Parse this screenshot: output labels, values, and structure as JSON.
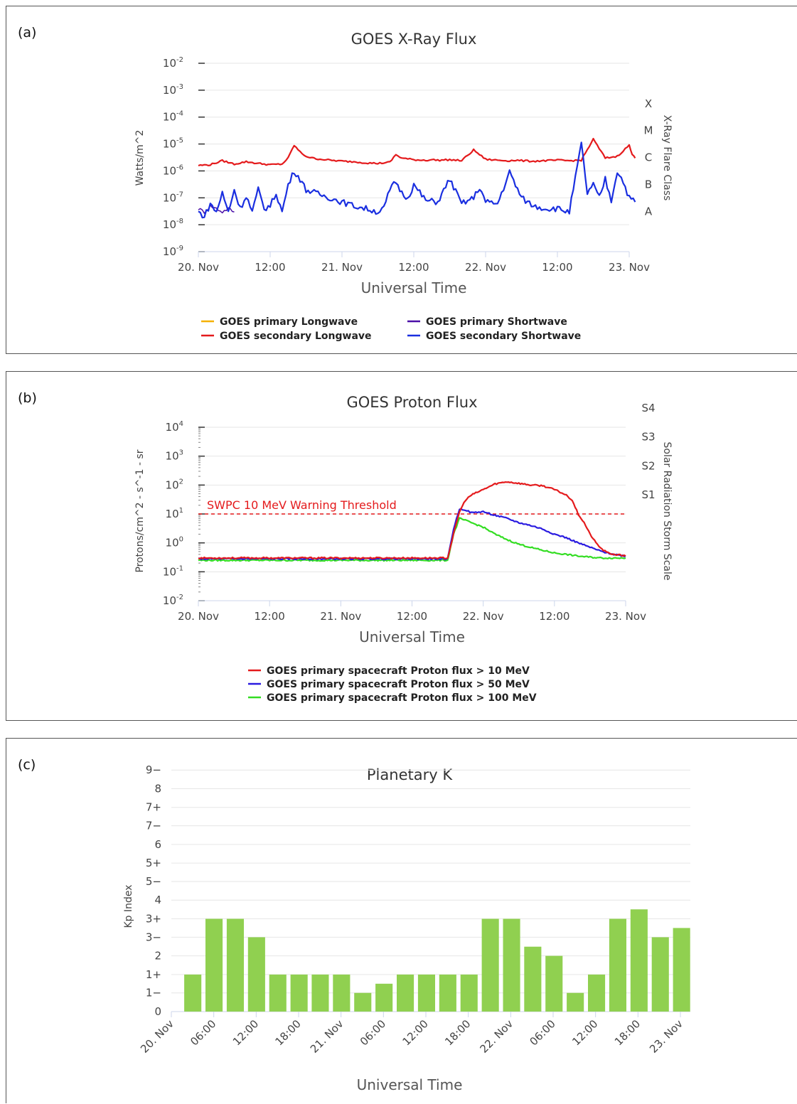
{
  "panel_labels": [
    "(a)",
    "(b)",
    "(c)"
  ],
  "chart_data": [
    {
      "type": "line",
      "title": "GOES X-Ray Flux",
      "xlabel": "Universal Time",
      "ylabel": "Watts/m^2",
      "y2label": "X-Ray Flare Class",
      "y_scale": "log",
      "ylim": [
        1e-09,
        0.01
      ],
      "xlim": [
        "2023-11-20T00:00",
        "2023-11-23T00:00"
      ],
      "x_ticks": [
        "20. Nov",
        "12:00",
        "21. Nov",
        "12:00",
        "22. Nov",
        "12:00",
        "23. Nov"
      ],
      "y_ticks": [
        "10",
        "10",
        "10",
        "10",
        "10",
        "10",
        "10",
        "10"
      ],
      "y_tick_exponents": [
        "-2",
        "-3",
        "-4",
        "-5",
        "-6",
        "-7",
        "-8",
        "-9"
      ],
      "flare_classes": [
        "X",
        "M",
        "C",
        "B",
        "A"
      ],
      "grid": true,
      "legend_position": "bottom",
      "series": [
        {
          "name": "GOES primary Longwave",
          "color": "#f5b000",
          "x": [],
          "y": []
        },
        {
          "name": "GOES primary Shortwave",
          "color": "#4b0fa8",
          "x": [
            0,
            1,
            2,
            3,
            4,
            5,
            6
          ],
          "y": [
            4e-08,
            3e-08,
            5e-08,
            4e-08,
            3e-08,
            4e-08,
            3e-08
          ]
        },
        {
          "name": "GOES secondary Longwave",
          "color": "#e41a1c",
          "x": [
            0,
            2,
            4,
            6,
            8,
            10,
            12,
            14,
            15,
            16,
            17,
            18,
            19,
            20,
            22,
            24,
            26,
            28,
            30,
            32,
            33,
            34,
            35,
            36,
            38,
            39,
            40,
            42,
            44,
            46,
            48,
            50,
            52,
            53,
            54,
            56,
            58,
            60,
            62,
            64,
            66,
            68,
            70,
            72,
            72.5,
            73
          ],
          "y": [
            1.6e-06,
            1.7e-06,
            2.4e-06,
            1.8e-06,
            2.2e-06,
            1.9e-06,
            1.7e-06,
            1.8e-06,
            3e-06,
            9e-06,
            5e-06,
            3.5e-06,
            3e-06,
            2.8e-06,
            2.5e-06,
            2.3e-06,
            2.2e-06,
            2e-06,
            1.9e-06,
            2.1e-06,
            4e-06,
            3e-06,
            2.8e-06,
            2.6e-06,
            2.5e-06,
            2.6e-06,
            2.5e-06,
            2.6e-06,
            2.4e-06,
            6e-06,
            2.7e-06,
            2.5e-06,
            2.4e-06,
            2.5e-06,
            2.4e-06,
            2.3e-06,
            2.4e-06,
            2.5e-06,
            2.4e-06,
            2.5e-06,
            1.5e-05,
            3e-06,
            3.5e-06,
            9e-06,
            4e-06,
            3e-06
          ]
        },
        {
          "name": "GOES secondary Shortwave",
          "color": "#1a2fe0",
          "x": [
            0,
            1,
            2,
            3,
            4,
            5,
            6,
            7,
            8,
            9,
            10,
            11,
            12,
            13,
            14,
            15,
            16,
            17,
            18,
            20,
            22,
            24,
            26,
            28,
            30,
            31,
            32,
            33,
            34,
            35,
            36,
            38,
            40,
            42,
            44,
            46,
            47,
            48,
            50,
            52,
            54,
            56,
            58,
            60,
            62,
            64,
            65,
            66,
            67,
            68,
            69,
            70,
            71,
            72,
            73
          ],
          "y": [
            3e-08,
            2e-08,
            6e-08,
            3e-08,
            1.5e-07,
            3e-08,
            2e-07,
            4e-08,
            1.2e-07,
            3e-08,
            2e-07,
            4e-08,
            5e-08,
            1.5e-07,
            3e-08,
            3e-07,
            1e-06,
            5e-07,
            2e-07,
            1.4e-07,
            1e-07,
            7e-08,
            5e-08,
            4e-08,
            3e-08,
            4e-08,
            2e-07,
            4e-07,
            1.5e-07,
            1e-07,
            3e-07,
            8e-08,
            7e-08,
            5e-07,
            6e-08,
            1e-07,
            2.5e-07,
            7e-08,
            6e-08,
            9e-07,
            1e-07,
            5e-08,
            4e-08,
            4e-08,
            3e-08,
            1e-05,
            1.5e-07,
            3e-07,
            1e-07,
            5e-07,
            8e-08,
            1e-06,
            4e-07,
            1e-07,
            7e-08
          ]
        }
      ]
    },
    {
      "type": "line",
      "title": "GOES Proton Flux",
      "xlabel": "Universal Time",
      "ylabel": "Protons/cm^2 - s^-1 - sr",
      "y2label": "Solar Radiation Storm Scale",
      "y_scale": "log",
      "ylim": [
        0.01,
        10000
      ],
      "xlim": [
        "2023-11-20T00:00",
        "2023-11-23T00:00"
      ],
      "x_ticks": [
        "20. Nov",
        "12:00",
        "21. Nov",
        "12:00",
        "22. Nov",
        "12:00",
        "23. Nov"
      ],
      "y_ticks": [
        "10",
        "10",
        "10",
        "10",
        "10",
        "10",
        "10"
      ],
      "y_tick_exponents": [
        "4",
        "3",
        "2",
        "1",
        "0",
        "-1",
        "-2"
      ],
      "storm_scale": [
        "S4",
        "S3",
        "S2",
        "S1"
      ],
      "threshold": {
        "label": "SWPC 10 MeV Warning Threshold",
        "value": 10,
        "color": "#e41a1c"
      },
      "grid": true,
      "legend_position": "bottom",
      "series": [
        {
          "name": "GOES primary spacecraft Proton flux > 10 MeV",
          "color": "#e41a1c",
          "x": [
            0,
            10,
            20,
            30,
            40,
            42,
            43,
            44,
            45,
            46,
            48,
            50,
            52,
            54,
            56,
            58,
            60,
            62,
            63,
            64,
            65,
            66,
            67,
            68,
            69,
            70,
            71,
            72
          ],
          "y": [
            0.3,
            0.3,
            0.3,
            0.3,
            0.3,
            0.3,
            2,
            12,
            30,
            45,
            70,
            110,
            130,
            115,
            100,
            95,
            70,
            45,
            30,
            10,
            5,
            2,
            1,
            0.6,
            0.45,
            0.4,
            0.38,
            0.35
          ]
        },
        {
          "name": "GOES primary spacecraft Proton flux > 50 MeV",
          "color": "#2a1be0",
          "x": [
            0,
            10,
            20,
            30,
            40,
            42,
            43,
            44,
            45,
            46,
            48,
            50,
            52,
            54,
            56,
            58,
            60,
            62,
            64,
            66,
            68,
            70,
            72
          ],
          "y": [
            0.28,
            0.28,
            0.28,
            0.28,
            0.28,
            0.28,
            3,
            15,
            14,
            11,
            12,
            9,
            7,
            5,
            4,
            3,
            2,
            1.5,
            1,
            0.7,
            0.5,
            0.4,
            0.35
          ]
        },
        {
          "name": "GOES primary spacecraft Proton flux > 100 MeV",
          "color": "#33dd22",
          "x": [
            0,
            10,
            20,
            30,
            40,
            42,
            43,
            44,
            45,
            46,
            48,
            50,
            52,
            54,
            56,
            58,
            60,
            62,
            64,
            66,
            68,
            70,
            72
          ],
          "y": [
            0.25,
            0.25,
            0.25,
            0.25,
            0.25,
            0.25,
            2,
            7,
            6,
            5,
            3.5,
            2,
            1.3,
            0.9,
            0.7,
            0.55,
            0.45,
            0.4,
            0.35,
            0.32,
            0.3,
            0.3,
            0.3
          ]
        }
      ]
    },
    {
      "type": "bar",
      "title": "Planetary K",
      "xlabel": "Universal Time",
      "ylabel": "Kp Index",
      "ylim": [
        0,
        9.67
      ],
      "y_ticks": [
        {
          "label": "9−",
          "v": 8.67
        },
        {
          "label": "8",
          "v": 8
        },
        {
          "label": "7+",
          "v": 7.33
        },
        {
          "label": "7−",
          "v": 6.67
        },
        {
          "label": "6",
          "v": 6
        },
        {
          "label": "5+",
          "v": 5.33
        },
        {
          "label": "5−",
          "v": 4.67
        },
        {
          "label": "4",
          "v": 4
        },
        {
          "label": "3+",
          "v": 3.33
        },
        {
          "label": "3−",
          "v": 2.67
        },
        {
          "label": "2",
          "v": 2
        },
        {
          "label": "1+",
          "v": 1.33
        },
        {
          "label": "1−",
          "v": 0.67
        },
        {
          "label": "0",
          "v": 0
        }
      ],
      "x_ticks": [
        "20. Nov",
        "06:00",
        "12:00",
        "18:00",
        "21. Nov",
        "06:00",
        "12:00",
        "18:00",
        "22. Nov",
        "06:00",
        "12:00",
        "18:00",
        "23. Nov"
      ],
      "color": "#90d050",
      "grid": true,
      "values": [
        1.33,
        3.33,
        3.33,
        2.67,
        1.33,
        1.33,
        1.33,
        1.33,
        0.67,
        1,
        1.33,
        1.33,
        1.33,
        1.33,
        3.33,
        3.33,
        2.33,
        2,
        0.67,
        1.33,
        3.33,
        3.67,
        2.67,
        3
      ]
    }
  ]
}
